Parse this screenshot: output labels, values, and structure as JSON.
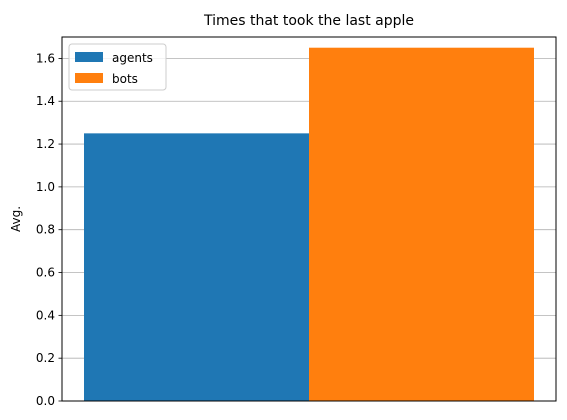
{
  "chart_data": {
    "type": "bar",
    "title": "Times that took the last apple",
    "xlabel": "",
    "ylabel": "Avg.",
    "ylim": [
      0,
      1.7
    ],
    "yticks": [
      0.0,
      0.2,
      0.4,
      0.6,
      0.8,
      1.0,
      1.2,
      1.4,
      1.6
    ],
    "ytick_labels": [
      "0.0",
      "0.2",
      "0.4",
      "0.6",
      "0.8",
      "1.0",
      "1.2",
      "1.4",
      "1.6"
    ],
    "grid": "y",
    "legend_position": "top-left",
    "series": [
      {
        "name": "agents",
        "value": 1.25,
        "color": "#1f77b4"
      },
      {
        "name": "bots",
        "value": 1.65,
        "color": "#ff7f0e"
      }
    ]
  }
}
